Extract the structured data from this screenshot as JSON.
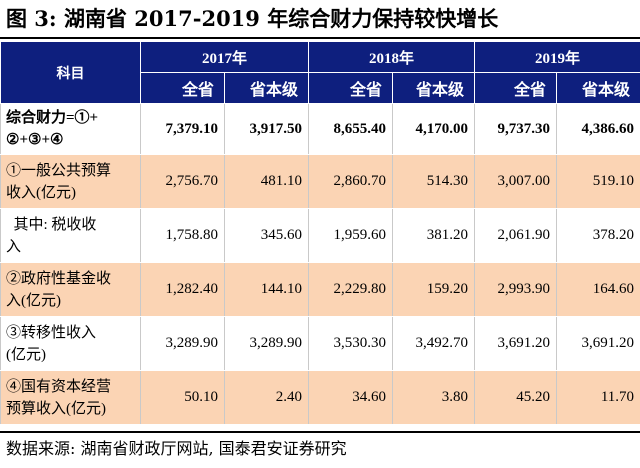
{
  "title": "图 3:  湖南省 2017-2019 年综合财力保持较快增长",
  "table": {
    "subject_header": "科目",
    "years": [
      "2017年",
      "2018年",
      "2019年"
    ],
    "sub_headers": [
      "全省",
      "省本级",
      "全省",
      "省本级",
      "全省",
      "省本级"
    ],
    "rows": [
      {
        "label_lines": [
          "综合财力=①+",
          "②+③+④"
        ],
        "values": [
          "7,379.10",
          "3,917.50",
          "8,655.40",
          "4,170.00",
          "9,737.30",
          "4,386.60"
        ]
      },
      {
        "label_lines": [
          "①一般公共预算",
          "收入(亿元)"
        ],
        "values": [
          "2,756.70",
          "481.10",
          "2,860.70",
          "514.30",
          "3,007.00",
          "519.10"
        ]
      },
      {
        "label_lines": [
          "  其中: 税收收",
          "入"
        ],
        "values": [
          "1,758.80",
          "345.60",
          "1,959.60",
          "381.20",
          "2,061.90",
          "378.20"
        ]
      },
      {
        "label_lines": [
          "②政府性基金收",
          "入(亿元)"
        ],
        "values": [
          "1,282.40",
          "144.10",
          "2,229.80",
          "159.20",
          "2,993.90",
          "164.60"
        ]
      },
      {
        "label_lines": [
          "③转移性收入",
          "(亿元)"
        ],
        "values": [
          "3,289.90",
          "3,289.90",
          "3,530.30",
          "3,492.70",
          "3,691.20",
          "3,691.20"
        ]
      },
      {
        "label_lines": [
          "④国有资本经营",
          "预算收入(亿元)"
        ],
        "values": [
          "50.10",
          "2.40",
          "34.60",
          "3.80",
          "45.20",
          "11.70"
        ]
      }
    ]
  },
  "source": "数据来源: 湖南省财政厅网站, 国泰君安证券研究",
  "colors": {
    "header_bg": "#0e1f7e",
    "shade": "#fbd4b4"
  }
}
